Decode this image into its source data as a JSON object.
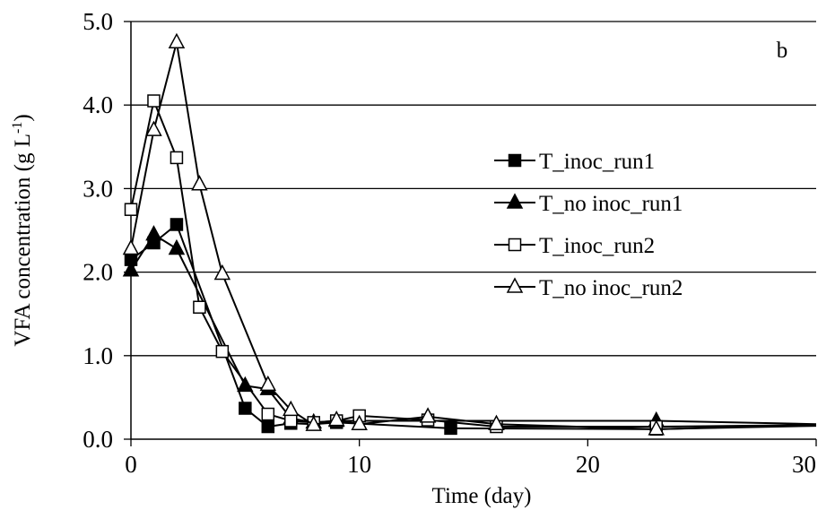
{
  "chart_data": {
    "type": "line",
    "panel_label": "b",
    "xlabel": "Time (day)",
    "ylabel": "VFA concentration (g L",
    "ylabel_sup": "-1",
    "ylabel_close": ")",
    "xlim": [
      0,
      30
    ],
    "ylim": [
      0,
      5
    ],
    "x_ticks": [
      0,
      10,
      20,
      30
    ],
    "x_tick_labels": [
      "0",
      "10",
      "20",
      "30"
    ],
    "y_ticks": [
      0,
      1,
      2,
      3,
      4,
      5
    ],
    "y_tick_labels": [
      "0.0",
      "1.0",
      "2.0",
      "3.0",
      "4.0",
      "5.0"
    ],
    "grid": "horizontal",
    "legend_position": "right",
    "series": [
      {
        "name": "T_inoc_run1",
        "marker": "square",
        "fill": "#000000",
        "x": [
          0,
          1,
          2,
          5,
          6,
          7,
          8,
          9,
          14,
          23,
          30
        ],
        "y": [
          2.15,
          2.35,
          2.57,
          0.37,
          0.15,
          0.19,
          0.18,
          0.2,
          0.13,
          0.12,
          0.17
        ]
      },
      {
        "name": "T_no inoc_run1",
        "marker": "triangle",
        "fill": "#000000",
        "x": [
          0,
          1,
          2,
          5,
          6,
          7,
          8,
          9,
          23,
          30
        ],
        "y": [
          2.02,
          2.45,
          2.28,
          0.64,
          0.6,
          0.25,
          0.2,
          0.22,
          0.22,
          0.18
        ]
      },
      {
        "name": "T_inoc_run2",
        "marker": "square",
        "fill": "#ffffff",
        "x": [
          0,
          1,
          2,
          3,
          4,
          6,
          7,
          8,
          9,
          10,
          13,
          16,
          23,
          30
        ],
        "y": [
          2.75,
          4.05,
          3.37,
          1.58,
          1.05,
          0.3,
          0.22,
          0.2,
          0.22,
          0.28,
          0.23,
          0.15,
          0.15,
          0.17
        ]
      },
      {
        "name": "T_no inoc_run2",
        "marker": "triangle",
        "fill": "#ffffff",
        "x": [
          0,
          1,
          2,
          3,
          4,
          6,
          7,
          8,
          9,
          10,
          13,
          16,
          23,
          30
        ],
        "y": [
          2.28,
          3.7,
          4.75,
          3.05,
          1.98,
          0.65,
          0.35,
          0.17,
          0.23,
          0.18,
          0.27,
          0.18,
          0.12,
          0.16
        ]
      }
    ]
  }
}
